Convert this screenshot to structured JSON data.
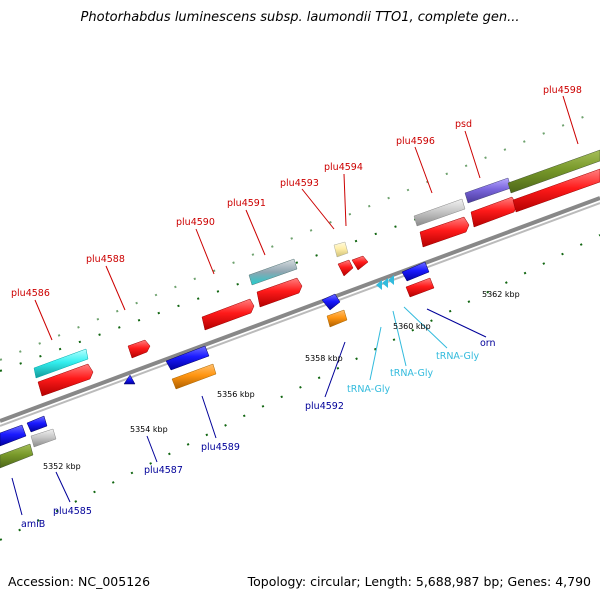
{
  "title": "Photorhabdus luminescens subsp. laumondii TTO1, complete gen...",
  "footer": {
    "accession": "Accession: NC_005126",
    "summary": "Topology: circular; Length: 5,688,987 bp; Genes: 4,790"
  },
  "colors": {
    "label_top": "#cc0000",
    "label_bottom": "#000099",
    "label_trna": "#33bbdd",
    "backbone": "#888888"
  },
  "gene_labels": [
    "plu4586",
    "plu4588",
    "plu4590",
    "plu4591",
    "plu4593",
    "plu4594",
    "plu4596",
    "psd",
    "plu4598",
    "amiB",
    "plu4585",
    "plu4587",
    "plu4589",
    "plu4592",
    "tRNA-Gly",
    "tRNA-Gly",
    "tRNA-Gly",
    "orn"
  ],
  "ticks": [
    "5352 kbp",
    "5354 kbp",
    "5356 kbp",
    "5358 kbp",
    "5360 kbp",
    "5362 kbp"
  ]
}
